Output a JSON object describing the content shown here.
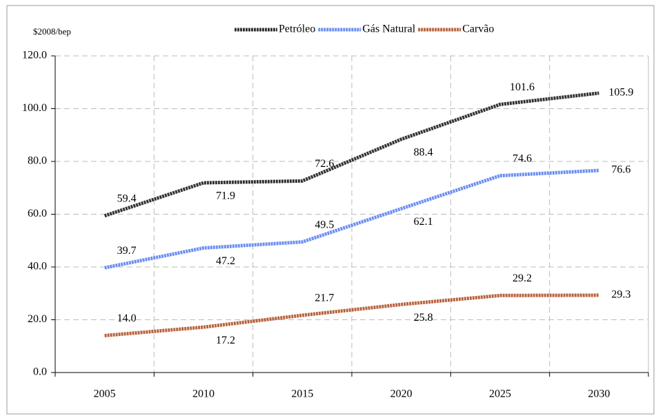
{
  "chart_data": {
    "type": "line",
    "y_label": "$2008/bep",
    "categories": [
      "2005",
      "2010",
      "2015",
      "2020",
      "2025",
      "2030"
    ],
    "series": [
      {
        "name": "Petróleo",
        "color": "#333333",
        "values": [
          59.4,
          71.9,
          72.6,
          88.4,
          101.6,
          105.9
        ],
        "value_labels": [
          "59.4",
          "71.9",
          "72.6",
          "88.4",
          "101.6",
          "105.9"
        ]
      },
      {
        "name": "Gás Natural",
        "color": "#6a8ef2",
        "values": [
          39.7,
          47.2,
          49.5,
          62.1,
          74.6,
          76.6
        ],
        "value_labels": [
          "39.7",
          "47.2",
          "49.5",
          "62.1",
          "74.6",
          "76.6"
        ]
      },
      {
        "name": "Carvão",
        "color": "#b8623c",
        "values": [
          14.0,
          17.2,
          21.7,
          25.8,
          29.2,
          29.3
        ],
        "value_labels": [
          "14.0",
          "17.2",
          "21.7",
          "25.8",
          "29.2",
          "29.3"
        ]
      }
    ],
    "ylim": [
      0,
      120
    ],
    "yticks": [
      {
        "value": 0,
        "label": "0.0"
      },
      {
        "value": 20,
        "label": "20.0"
      },
      {
        "value": 40,
        "label": "40.0"
      },
      {
        "value": 60,
        "label": "60.0"
      },
      {
        "value": 80,
        "label": "80.0"
      },
      {
        "value": 100,
        "label": "100.0"
      },
      {
        "value": 120,
        "label": "120.0"
      }
    ],
    "grid": true,
    "legend": "top"
  }
}
